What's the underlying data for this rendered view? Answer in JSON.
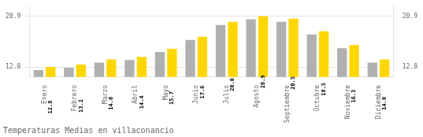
{
  "chart_data": {
    "type": "bar",
    "title": "Temperaturas Medias en villaconancio",
    "categories": [
      "Enero",
      "Febrero",
      "Marzo",
      "Abril",
      "Mayo",
      "Junio",
      "Julio",
      "Agosto",
      "Septiembre",
      "Octubre",
      "Noviembre",
      "Diciembre"
    ],
    "series": [
      {
        "color": "#B0B0B0",
        "values": [
          12.3,
          12.7,
          13.5,
          13.9,
          15.2,
          17.1,
          19.5,
          20.4,
          20.0,
          18.0,
          15.8,
          13.5
        ]
      },
      {
        "color": "#FFD700",
        "values": [
          12.8,
          13.2,
          14.0,
          14.4,
          15.7,
          17.6,
          20.0,
          20.9,
          20.5,
          18.5,
          16.3,
          14.0
        ],
        "value_labels": [
          "12.8",
          "13.2",
          "14.0",
          "14.4",
          "15.7",
          "17.6",
          "20.0",
          "20.9",
          "20.5",
          "18.5",
          "16.3",
          "14.0"
        ],
        "data_labels": true
      }
    ],
    "ylim": [
      11.2,
      22.5
    ],
    "yticks": [
      12.8,
      20.9
    ],
    "y2lim": [
      11.2,
      22.5
    ],
    "y2ticks": [
      12.8,
      20.9
    ],
    "grid": true
  }
}
